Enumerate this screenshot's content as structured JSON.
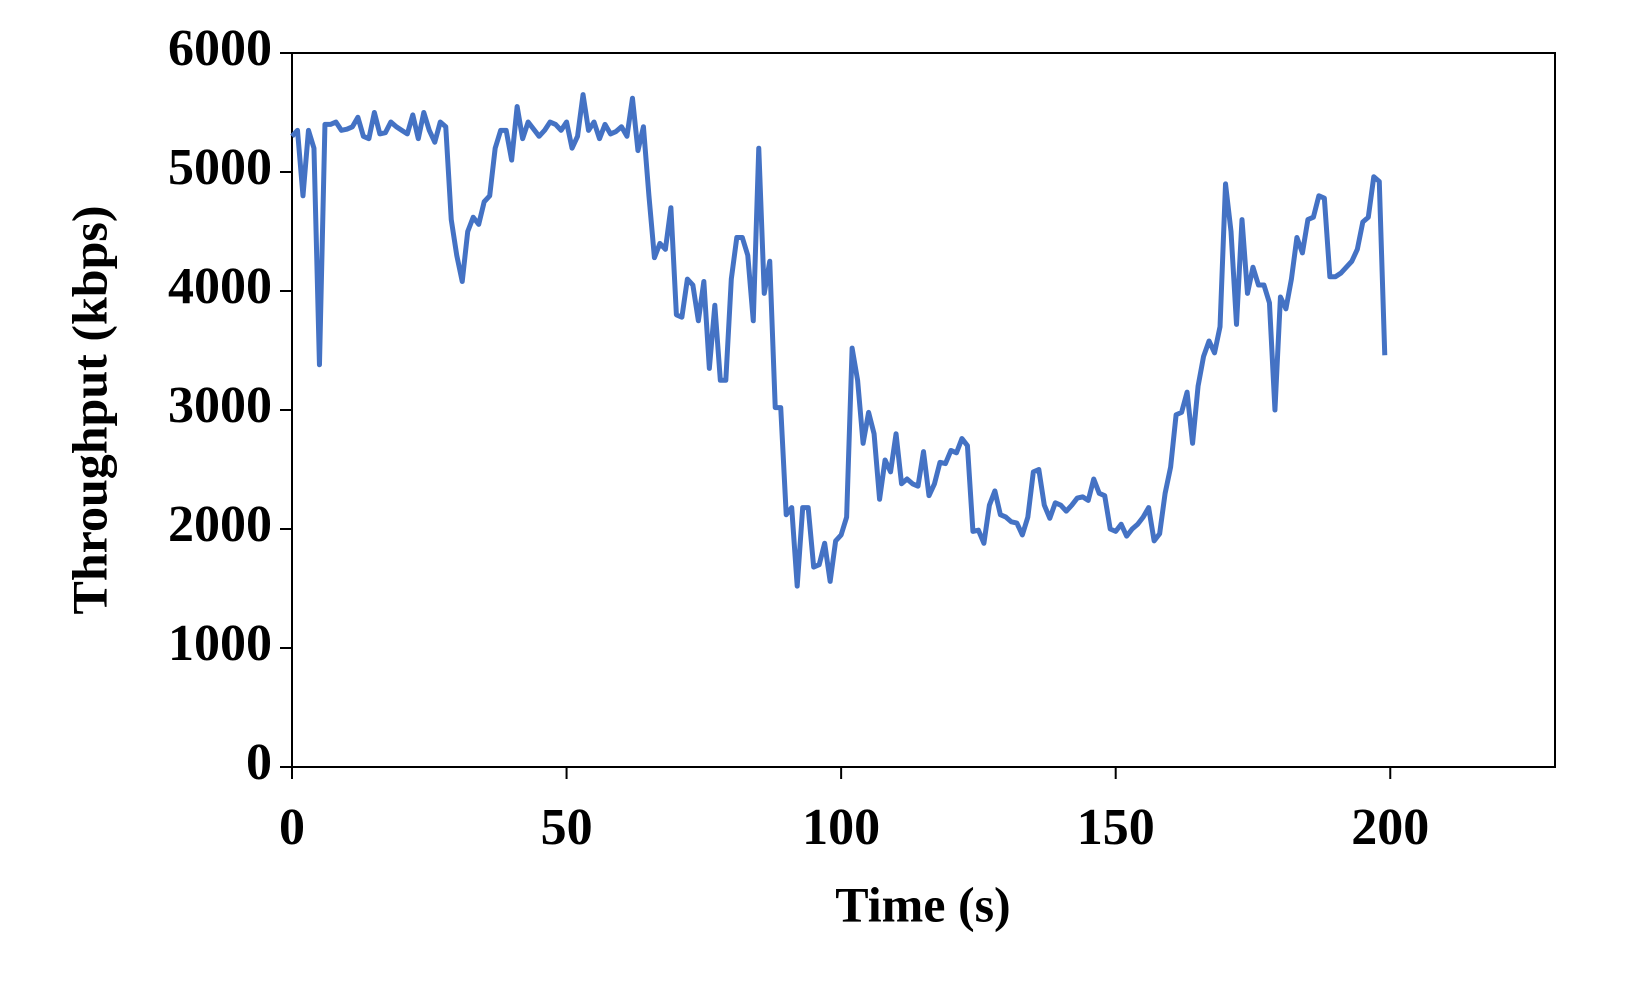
{
  "chart_data": {
    "type": "line",
    "x_label": "Time (s)",
    "y_label": "Throughput (kbps)",
    "xlim": [
      0,
      230
    ],
    "xticks": [
      0,
      50,
      100,
      150,
      200
    ],
    "ylim": [
      0,
      6000
    ],
    "yticks": [
      0,
      1000,
      2000,
      3000,
      4000,
      5000,
      6000
    ],
    "grid": false,
    "x": [
      0,
      1,
      2,
      3,
      4,
      5,
      6,
      7,
      8,
      9,
      10,
      11,
      12,
      13,
      14,
      15,
      16,
      17,
      18,
      19,
      20,
      21,
      22,
      23,
      24,
      25,
      26,
      27,
      28,
      29,
      30,
      31,
      32,
      33,
      34,
      35,
      36,
      37,
      38,
      39,
      40,
      41,
      42,
      43,
      44,
      45,
      46,
      47,
      48,
      49,
      50,
      51,
      52,
      53,
      54,
      55,
      56,
      57,
      58,
      59,
      60,
      61,
      62,
      63,
      64,
      65,
      66,
      67,
      68,
      69,
      70,
      71,
      72,
      73,
      74,
      75,
      76,
      77,
      78,
      79,
      80,
      81,
      82,
      83,
      84,
      85,
      86,
      87,
      88,
      89,
      90,
      91,
      92,
      93,
      94,
      95,
      96,
      97,
      98,
      99,
      100,
      101,
      102,
      103,
      104,
      105,
      106,
      107,
      108,
      109,
      110,
      111,
      112,
      113,
      114,
      115,
      116,
      117,
      118,
      119,
      120,
      121,
      122,
      123,
      124,
      125,
      126,
      127,
      128,
      129,
      130,
      131,
      132,
      133,
      134,
      135,
      136,
      137,
      138,
      139,
      140,
      141,
      142,
      143,
      144,
      145,
      146,
      147,
      148,
      149,
      150,
      151,
      152,
      153,
      154,
      155,
      156,
      157,
      158,
      159,
      160,
      161,
      162,
      163,
      164,
      165,
      166,
      167,
      168,
      169,
      170,
      171,
      172,
      173,
      174,
      175,
      176,
      177,
      178,
      179,
      180,
      181,
      182,
      183,
      184,
      185,
      186,
      187,
      188,
      189,
      190,
      191,
      192,
      193,
      194,
      195,
      196,
      197,
      198,
      199
    ],
    "series": [
      {
        "name": "Throughput",
        "color": "#4472c4",
        "values": [
          5300,
          5350,
          4800,
          5350,
          5200,
          3380,
          5400,
          5400,
          5420,
          5350,
          5360,
          5380,
          5460,
          5300,
          5280,
          5500,
          5320,
          5330,
          5420,
          5380,
          5350,
          5320,
          5480,
          5280,
          5500,
          5350,
          5250,
          5420,
          5380,
          4600,
          4300,
          4080,
          4500,
          4620,
          4560,
          4750,
          4800,
          5200,
          5350,
          5350,
          5100,
          5550,
          5280,
          5420,
          5360,
          5300,
          5350,
          5420,
          5400,
          5350,
          5420,
          5200,
          5300,
          5650,
          5350,
          5420,
          5280,
          5400,
          5320,
          5340,
          5380,
          5300,
          5620,
          5180,
          5380,
          4800,
          4280,
          4400,
          4350,
          4700,
          3800,
          3780,
          4100,
          4050,
          3750,
          4080,
          3350,
          3880,
          3250,
          3250,
          4100,
          4450,
          4450,
          4300,
          3750,
          5200,
          3980,
          4250,
          3020,
          3020,
          2120,
          2180,
          1520,
          2180,
          2180,
          1680,
          1700,
          1880,
          1560,
          1900,
          1950,
          2100,
          3520,
          3250,
          2720,
          2980,
          2800,
          2250,
          2580,
          2480,
          2800,
          2380,
          2420,
          2380,
          2360,
          2650,
          2280,
          2380,
          2560,
          2550,
          2660,
          2640,
          2760,
          2700,
          1980,
          1990,
          1880,
          2200,
          2320,
          2120,
          2100,
          2060,
          2050,
          1950,
          2100,
          2480,
          2500,
          2200,
          2090,
          2220,
          2200,
          2150,
          2200,
          2260,
          2270,
          2240,
          2420,
          2300,
          2280,
          2000,
          1980,
          2040,
          1940,
          2000,
          2040,
          2100,
          2180,
          1900,
          1960,
          2300,
          2520,
          2960,
          2980,
          3150,
          2720,
          3200,
          3450,
          3580,
          3480,
          3700,
          4900,
          4500,
          3720,
          4600,
          3980,
          4200,
          4050,
          4050,
          3900,
          3000,
          3950,
          3850,
          4100,
          4450,
          4320,
          4600,
          4620,
          4800,
          4780,
          4120,
          4120,
          4150,
          4200,
          4250,
          4350,
          4580,
          4620,
          4960,
          4920,
          3460
        ]
      }
    ]
  }
}
